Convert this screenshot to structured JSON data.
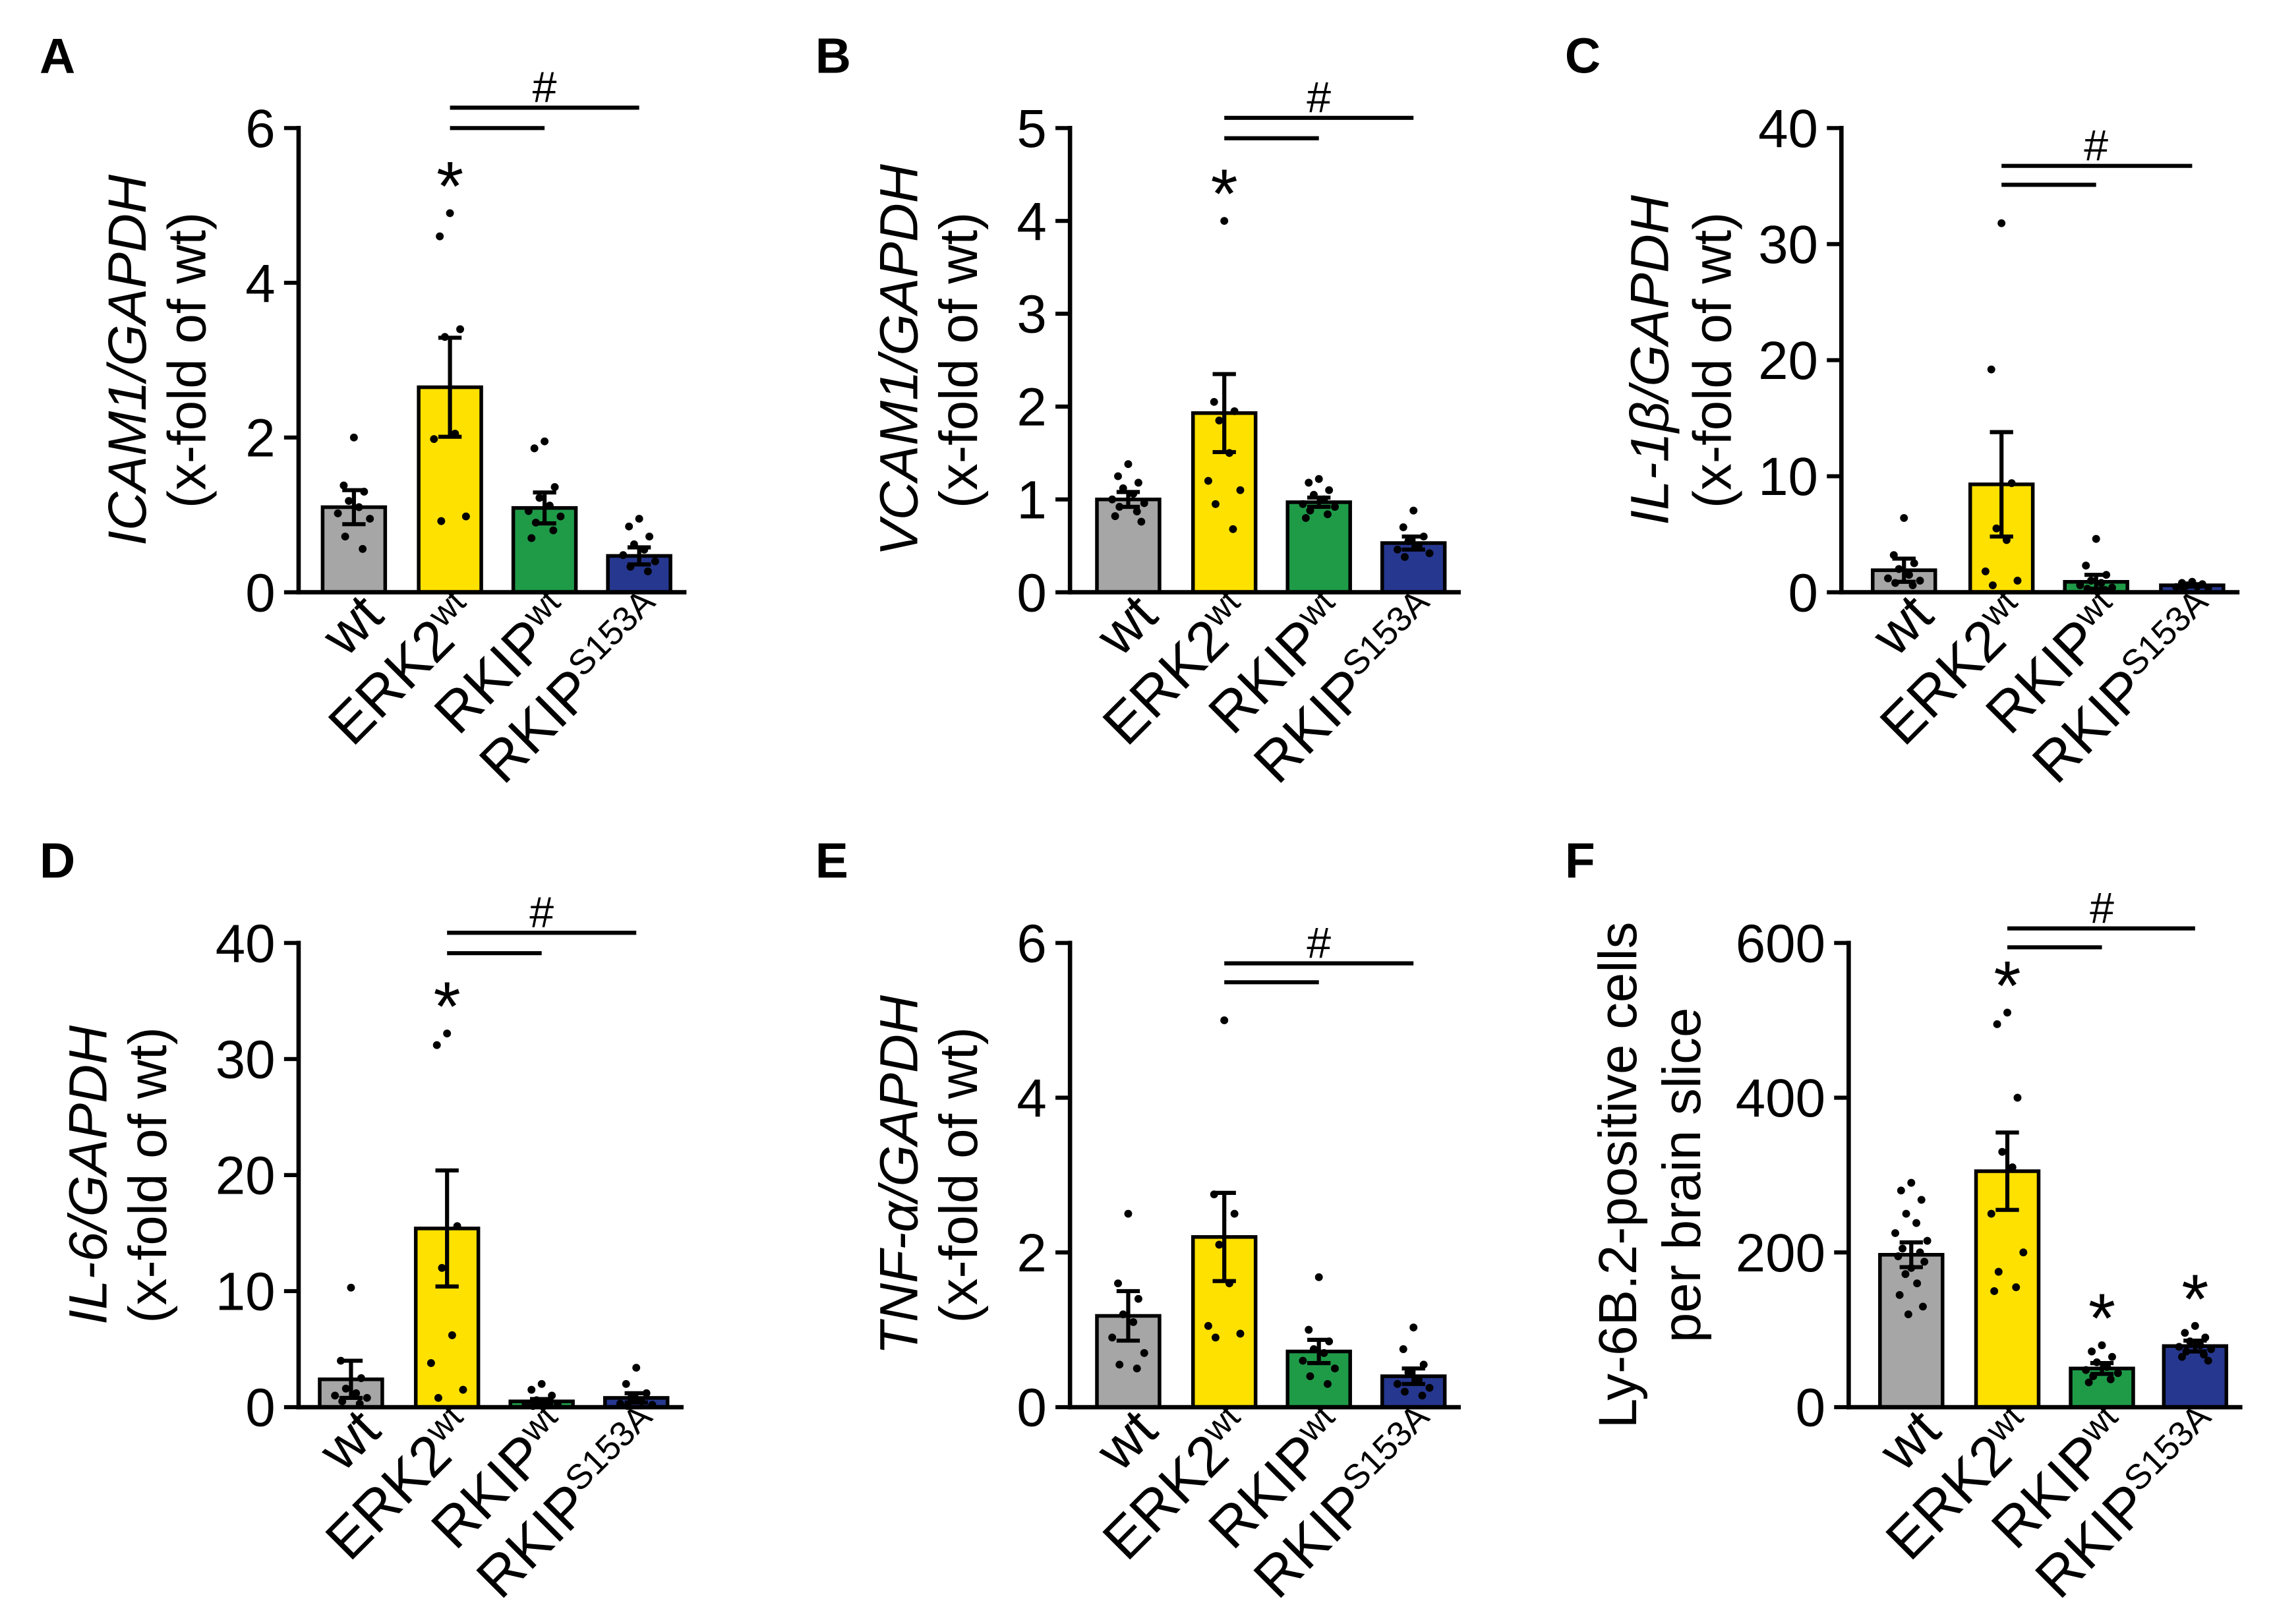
{
  "significance": {
    "star_symbol": "*"
  },
  "chart_data": [
    {
      "panel": "A",
      "type": "bar",
      "ylabel_lines": [
        {
          "text": "ICAM1/GAPDH",
          "italic": true
        },
        {
          "text": "(x-fold of wt)",
          "italic": false
        }
      ],
      "ylim": [
        0,
        6
      ],
      "yticks": [
        0,
        2,
        4,
        6
      ],
      "categories": [
        {
          "base": "wt",
          "sup": ""
        },
        {
          "base": "ERK2",
          "sup": "wt"
        },
        {
          "base": "RKIP",
          "sup": "wt"
        },
        {
          "base": "RKIP",
          "sup": "S153A"
        }
      ],
      "colors": [
        "#a6a6a6",
        "#ffe100",
        "#1f9b48",
        "#26378f"
      ],
      "values": [
        1.1,
        2.65,
        1.09,
        0.47
      ],
      "sem": [
        0.22,
        0.64,
        0.2,
        0.11
      ],
      "points": [
        [
          2.0,
          1.38,
          1.3,
          1.18,
          1.1,
          1.02,
          0.95,
          0.72,
          0.56
        ],
        [
          4.9,
          4.6,
          3.4,
          3.3,
          2.05,
          1.98,
          0.98,
          0.92
        ],
        [
          1.95,
          1.86,
          1.36,
          1.22,
          1.12,
          1.05,
          0.98,
          0.9,
          0.8,
          0.7
        ],
        [
          0.95,
          0.85,
          0.72,
          0.62,
          0.55,
          0.48,
          0.4,
          0.33,
          0.27
        ]
      ],
      "star": [
        false,
        true,
        false,
        false
      ],
      "bracket": {
        "label": "#",
        "from": 1,
        "to": [
          2,
          3
        ]
      }
    },
    {
      "panel": "B",
      "type": "bar",
      "ylabel_lines": [
        {
          "text": "VCAM1/GAPDH",
          "italic": true
        },
        {
          "text": "(x-fold of wt)",
          "italic": false
        }
      ],
      "ylim": [
        0,
        5
      ],
      "yticks": [
        0,
        1,
        2,
        3,
        4,
        5
      ],
      "categories": [
        {
          "base": "wt",
          "sup": ""
        },
        {
          "base": "ERK2",
          "sup": "wt"
        },
        {
          "base": "RKIP",
          "sup": "wt"
        },
        {
          "base": "RKIP",
          "sup": "S153A"
        }
      ],
      "colors": [
        "#a6a6a6",
        "#ffe100",
        "#1f9b48",
        "#26378f"
      ],
      "values": [
        1.0,
        1.93,
        0.97,
        0.53
      ],
      "sem": [
        0.08,
        0.42,
        0.05,
        0.07
      ],
      "points": [
        [
          1.38,
          1.25,
          1.18,
          1.12,
          1.06,
          1.0,
          0.96,
          0.92,
          0.87,
          0.82,
          0.76
        ],
        [
          4.0,
          2.05,
          1.95,
          1.85,
          1.5,
          1.2,
          1.1,
          0.95,
          0.68
        ],
        [
          1.22,
          1.18,
          1.1,
          1.05,
          1.0,
          0.95,
          0.92,
          0.88,
          0.84,
          0.8
        ],
        [
          0.88,
          0.7,
          0.6,
          0.55,
          0.5,
          0.46,
          0.42,
          0.38
        ]
      ],
      "star": [
        false,
        true,
        false,
        false
      ],
      "bracket": {
        "label": "#",
        "from": 1,
        "to": [
          2,
          3
        ]
      }
    },
    {
      "panel": "C",
      "type": "bar",
      "ylabel_lines": [
        {
          "text": "IL-1β/GAPDH",
          "italic": true
        },
        {
          "text": "(x-fold of wt)",
          "italic": false
        }
      ],
      "ylim": [
        0,
        40
      ],
      "yticks": [
        0,
        10,
        20,
        30,
        40
      ],
      "categories": [
        {
          "base": "wt",
          "sup": ""
        },
        {
          "base": "ERK2",
          "sup": "wt"
        },
        {
          "base": "RKIP",
          "sup": "wt"
        },
        {
          "base": "RKIP",
          "sup": "S153A"
        }
      ],
      "colors": [
        "#a6a6a6",
        "#ffe100",
        "#1f9b48",
        "#26378f"
      ],
      "values": [
        1.9,
        9.3,
        0.9,
        0.6
      ],
      "sem": [
        1.0,
        4.5,
        0.6,
        0.1
      ],
      "points": [
        [
          6.4,
          3.2,
          2.5,
          2.0,
          1.5,
          1.2,
          1.0,
          0.8,
          0.6
        ],
        [
          31.8,
          19.2,
          9.4,
          5.5,
          4.5,
          1.8,
          1.0,
          0.6
        ],
        [
          4.6,
          2.3,
          1.5,
          1.0,
          0.8,
          0.6,
          0.4,
          0.3,
          0.2
        ],
        [
          0.9,
          0.8,
          0.7,
          0.6,
          0.5,
          0.45,
          0.4,
          0.35
        ]
      ],
      "star": [
        false,
        false,
        false,
        false
      ],
      "bracket": {
        "label": "#",
        "from": 1,
        "to": [
          2,
          3
        ]
      }
    },
    {
      "panel": "D",
      "type": "bar",
      "ylabel_lines": [
        {
          "text": "IL-6/GAPDH",
          "italic": true
        },
        {
          "text": "(x-fold of wt)",
          "italic": false
        }
      ],
      "ylim": [
        0,
        40
      ],
      "yticks": [
        0,
        10,
        20,
        30,
        40
      ],
      "categories": [
        {
          "base": "wt",
          "sup": ""
        },
        {
          "base": "ERK2",
          "sup": "wt"
        },
        {
          "base": "RKIP",
          "sup": "wt"
        },
        {
          "base": "RKIP",
          "sup": "S153A"
        }
      ],
      "colors": [
        "#a6a6a6",
        "#ffe100",
        "#1f9b48",
        "#26378f"
      ],
      "values": [
        2.4,
        15.4,
        0.5,
        0.8
      ],
      "sem": [
        1.6,
        5.0,
        0.2,
        0.4
      ],
      "points": [
        [
          10.3,
          4.0,
          2.5,
          1.6,
          1.2,
          1.0,
          0.8,
          0.5,
          0.3
        ],
        [
          32.2,
          31.2,
          15.6,
          12.0,
          6.2,
          3.8,
          1.5,
          0.8
        ],
        [
          2.0,
          1.5,
          1.0,
          0.6,
          0.4,
          0.3,
          0.2,
          0.1
        ],
        [
          3.4,
          2.0,
          1.2,
          0.8,
          0.5,
          0.3,
          0.2,
          0.1
        ]
      ],
      "star": [
        false,
        true,
        false,
        false
      ],
      "bracket": {
        "label": "#",
        "from": 1,
        "to": [
          2,
          3
        ]
      }
    },
    {
      "panel": "E",
      "type": "bar",
      "ylabel_lines": [
        {
          "text": "TNF-α/GAPDH",
          "italic": true
        },
        {
          "text": "(x-fold of wt)",
          "italic": false
        }
      ],
      "ylim": [
        0,
        6
      ],
      "yticks": [
        0,
        2,
        4,
        6
      ],
      "categories": [
        {
          "base": "wt",
          "sup": ""
        },
        {
          "base": "ERK2",
          "sup": "wt"
        },
        {
          "base": "RKIP",
          "sup": "wt"
        },
        {
          "base": "RKIP",
          "sup": "S153A"
        }
      ],
      "colors": [
        "#a6a6a6",
        "#ffe100",
        "#1f9b48",
        "#26378f"
      ],
      "values": [
        1.18,
        2.2,
        0.72,
        0.4
      ],
      "sem": [
        0.32,
        0.57,
        0.15,
        0.1
      ],
      "points": [
        [
          2.5,
          1.6,
          1.4,
          1.2,
          1.1,
          0.9,
          0.7,
          0.55,
          0.5
        ],
        [
          5.0,
          2.75,
          2.5,
          2.1,
          1.6,
          1.05,
          0.95,
          0.9
        ],
        [
          1.68,
          1.0,
          0.85,
          0.75,
          0.7,
          0.6,
          0.5,
          0.4,
          0.3
        ],
        [
          1.03,
          0.75,
          0.55,
          0.45,
          0.35,
          0.3,
          0.25,
          0.2,
          0.15
        ]
      ],
      "star": [
        false,
        false,
        false,
        false
      ],
      "bracket": {
        "label": "#",
        "from": 1,
        "to": [
          2,
          3
        ]
      }
    },
    {
      "panel": "F",
      "type": "bar",
      "ylabel_lines": [
        {
          "text": "Ly-6B.2-positive cells",
          "italic": false
        },
        {
          "text": "per brain slice",
          "italic": false
        }
      ],
      "ylim": [
        0,
        600
      ],
      "yticks": [
        0,
        200,
        400,
        600
      ],
      "categories": [
        {
          "base": "wt",
          "sup": ""
        },
        {
          "base": "ERK2",
          "sup": "wt"
        },
        {
          "base": "RKIP",
          "sup": "wt"
        },
        {
          "base": "RKIP",
          "sup": "S153A"
        }
      ],
      "colors": [
        "#a6a6a6",
        "#ffe100",
        "#1f9b48",
        "#26378f"
      ],
      "values": [
        197,
        305,
        50,
        79
      ],
      "sem": [
        16,
        50,
        7,
        7
      ],
      "points": [
        [
          290,
          280,
          268,
          250,
          238,
          225,
          215,
          205,
          200,
          195,
          188,
          180,
          172,
          160,
          145,
          130,
          120
        ],
        [
          510,
          495,
          400,
          330,
          310,
          250,
          200,
          175,
          155,
          150
        ],
        [
          80,
          72,
          65,
          58,
          52,
          48,
          44,
          40,
          36,
          32
        ],
        [
          105,
          96,
          90,
          85,
          80,
          78,
          75,
          72,
          68,
          65,
          60
        ]
      ],
      "star": [
        false,
        true,
        true,
        true
      ],
      "bracket": {
        "label": "#",
        "from": 1,
        "to": [
          2,
          3
        ]
      }
    }
  ]
}
